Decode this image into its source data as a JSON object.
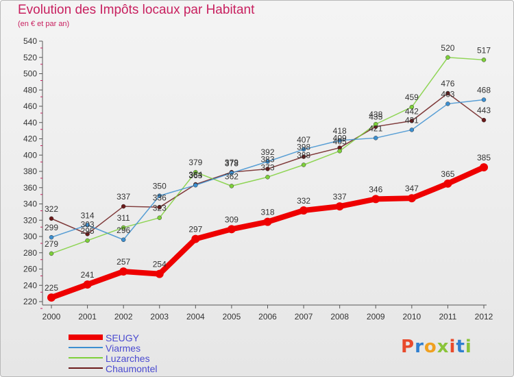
{
  "title": "Evolution des Impôts locaux par Habitant",
  "subtitle": "(en € et par an)",
  "logo_text": "Proxiti",
  "logo_colors": [
    "#e84a2c",
    "#2f7fd0",
    "#f0a020",
    "#8ac43a",
    "#e84a2c",
    "#2f7fd0",
    "#8ac43a"
  ],
  "chart_data": {
    "type": "line",
    "x": [
      "2000",
      "2001",
      "2002",
      "2003",
      "2004",
      "2005",
      "2006",
      "2007",
      "2008",
      "2009",
      "2010",
      "2011",
      "2012"
    ],
    "ylim": [
      220,
      540
    ],
    "yticks": [
      220,
      240,
      260,
      280,
      300,
      320,
      340,
      360,
      380,
      400,
      420,
      440,
      460,
      480,
      500,
      520,
      540
    ],
    "grid": false,
    "legend_position": "bottom-left",
    "series": [
      {
        "name": "SEUGY",
        "color": "#ee0000",
        "values": [
          225,
          241,
          257,
          254,
          297,
          309,
          318,
          332,
          337,
          346,
          347,
          365,
          385
        ]
      },
      {
        "name": "Viarmes",
        "color": "#3c8fd0",
        "values": [
          299,
          314,
          296,
          350,
          363,
          378,
          392,
          407,
          418,
          421,
          431,
          463,
          468
        ]
      },
      {
        "name": "Luzarches",
        "color": "#7ed03a",
        "values": [
          279,
          295,
          311,
          323,
          379,
          362,
          373,
          388,
          405,
          438,
          459,
          520,
          517
        ]
      },
      {
        "name": "Chaumontel",
        "color": "#6b1a1a",
        "values": [
          322,
          303,
          337,
          336,
          364,
          379,
          383,
          398,
          409,
          435,
          442,
          476,
          443
        ]
      }
    ]
  }
}
